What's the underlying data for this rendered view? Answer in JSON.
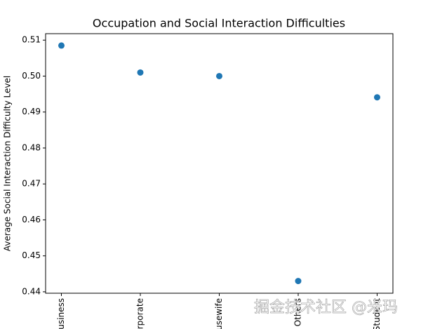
{
  "chart_data": {
    "type": "scatter",
    "title": "Occupation and Social Interaction Difficulties",
    "y_label": "Average Social Interaction Difficulty Level",
    "categories": [
      "Business",
      "Corporate",
      "Housewife",
      "Others",
      "Student"
    ],
    "values": [
      0.5085,
      0.501,
      0.5,
      0.443,
      0.4941
    ],
    "color": "#1f77b4",
    "xlim": [
      -0.2,
      4.2
    ],
    "ylim": [
      0.4396,
      0.5118
    ],
    "yticks": [
      {
        "value": 0.44,
        "label": "0.44"
      },
      {
        "value": 0.45,
        "label": "0.45"
      },
      {
        "value": 0.46,
        "label": "0.46"
      },
      {
        "value": 0.47,
        "label": "0.47"
      },
      {
        "value": 0.48,
        "label": "0.48"
      },
      {
        "value": 0.49,
        "label": "0.49"
      },
      {
        "value": 0.5,
        "label": "0.50"
      },
      {
        "value": 0.51,
        "label": "0.51"
      }
    ],
    "watermark": "掘金技术社区 @米玛"
  }
}
